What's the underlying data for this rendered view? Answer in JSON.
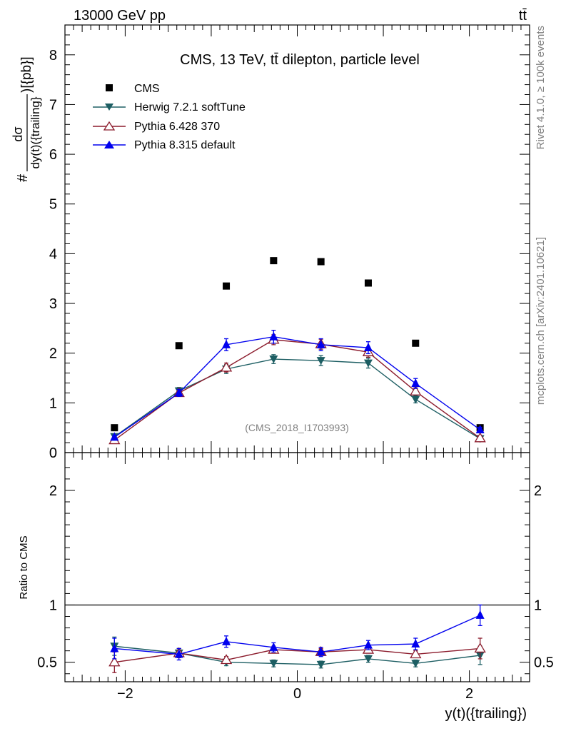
{
  "header": {
    "energy_label": "13000 GeV pp",
    "process_label": "tt̄"
  },
  "side": {
    "rivet_label": "Rivet 4.1.0, ≥ 100k events",
    "source_label": "mcplots.cern.ch [arXiv:2401.10621]"
  },
  "chart_data": {
    "type": "scatter",
    "title": "CMS, 13 TeV, tt̄ dilepton, particle level",
    "analysis_label": "(CMS_2018_I1703993)",
    "xlabel": "y(t)({trailing})",
    "ylabel_top": "#dσ / dy(t)({trailing}) )[{pb}]",
    "ylabel_num": "dσ",
    "ylabel_den": "dy(t)({trailing}",
    "ylabel_suffix": ")[{pb}]",
    "ylabel_prefix": "#",
    "ylabel_ratio": "Ratio to CMS",
    "xlim": [
      -2.7,
      2.7
    ],
    "ylim_top": [
      0,
      8.6
    ],
    "ylim_ratio": [
      0.33,
      2.33
    ],
    "x_ticks": [
      "-2",
      "0",
      "2"
    ],
    "y_ticks_top": [
      "0",
      "1",
      "2",
      "3",
      "4",
      "5",
      "6",
      "7",
      "8"
    ],
    "y_ticks_ratio": [
      "0.5",
      "1",
      "2"
    ],
    "x": [
      -2.125,
      -1.375,
      -0.825,
      -0.275,
      0.275,
      0.825,
      1.375,
      2.125
    ],
    "series": [
      {
        "name": "CMS",
        "color": "#000000",
        "marker": "square",
        "values": [
          0.5,
          2.15,
          3.35,
          3.86,
          3.84,
          3.41,
          2.2,
          0.5
        ],
        "ratio": [
          1,
          1,
          1,
          1,
          1,
          1,
          1,
          1
        ]
      },
      {
        "name": "Herwig 7.2.1 softTune",
        "color": "#1d5e63",
        "marker": "triangle-down",
        "values": [
          0.32,
          1.24,
          1.68,
          1.88,
          1.85,
          1.8,
          1.07,
          0.28
        ],
        "errors": [
          0.04,
          0.07,
          0.09,
          0.09,
          0.1,
          0.1,
          0.07,
          0.04
        ],
        "ratio": [
          0.64,
          0.58,
          0.5,
          0.49,
          0.48,
          0.53,
          0.49,
          0.56
        ],
        "ratio_errors": [
          0.08,
          0.04,
          0.03,
          0.03,
          0.03,
          0.03,
          0.03,
          0.08
        ]
      },
      {
        "name": "Pythia 6.428 370",
        "color": "#8b1a2b",
        "marker": "triangle-up-open",
        "values": [
          0.25,
          1.2,
          1.71,
          2.27,
          2.18,
          2.02,
          1.23,
          0.29
        ],
        "errors": [
          0.04,
          0.07,
          0.09,
          0.1,
          0.1,
          0.1,
          0.07,
          0.04
        ],
        "ratio": [
          0.5,
          0.58,
          0.52,
          0.61,
          0.59,
          0.61,
          0.57,
          0.62
        ],
        "ratio_errors": [
          0.09,
          0.04,
          0.03,
          0.03,
          0.03,
          0.03,
          0.03,
          0.09
        ]
      },
      {
        "name": "Pythia 8.315 default",
        "color": "#0000ee",
        "marker": "triangle-up",
        "values": [
          0.31,
          1.2,
          2.17,
          2.33,
          2.17,
          2.11,
          1.39,
          0.46
        ],
        "errors": [
          0.04,
          0.07,
          0.12,
          0.13,
          0.12,
          0.12,
          0.1,
          0.05
        ],
        "ratio": [
          0.62,
          0.57,
          0.68,
          0.63,
          0.59,
          0.65,
          0.66,
          0.91
        ],
        "ratio_errors": [
          0.09,
          0.05,
          0.05,
          0.04,
          0.04,
          0.04,
          0.05,
          0.09
        ]
      }
    ]
  }
}
